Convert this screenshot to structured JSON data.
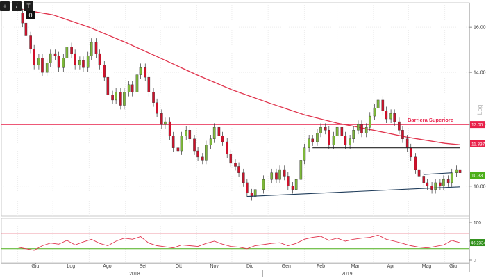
{
  "toolbar": {
    "buttons": [
      {
        "icon": "pan-icon",
        "glyph": "+"
      },
      {
        "icon": "draw-icon",
        "glyph": "/"
      },
      {
        "icon": "text-icon",
        "glyph": "T"
      }
    ],
    "badge": "0"
  },
  "chart_data": [
    {
      "type": "candlestick",
      "title": "",
      "xlabel": "",
      "ylabel": "",
      "scale": "log",
      "scale_label": "Log",
      "ylim": [
        9.15,
        17.2
      ],
      "y_ticks": [
        10.0,
        12.0,
        14.0,
        16.0
      ],
      "y_tick_labels": [
        "10.00",
        "12.00",
        "14.00",
        "16.00"
      ],
      "x_months": [
        "Giu",
        "Lug",
        "Ago",
        "Set",
        "Ott",
        "Nov",
        "Dic",
        "Gen",
        "Feb",
        "Mar",
        "Apr",
        "Mag",
        "Giu"
      ],
      "x_years": [
        "2018",
        "2019"
      ],
      "up_color": "#7db83a",
      "down_color": "#d0112b",
      "grid": true,
      "series": [
        {
          "kind": "close_path",
          "points": [
            [
              "2018-06-01",
              16.7
            ],
            [
              "2018-06-05",
              16.2
            ],
            [
              "2018-06-08",
              15.6
            ],
            [
              "2018-06-12",
              15.0
            ],
            [
              "2018-06-15",
              14.3
            ],
            [
              "2018-06-19",
              14.6
            ],
            [
              "2018-06-22",
              14.0
            ],
            [
              "2018-06-26",
              14.4
            ],
            [
              "2018-06-29",
              14.8
            ],
            [
              "2018-07-03",
              14.7
            ],
            [
              "2018-07-06",
              14.2
            ],
            [
              "2018-07-10",
              14.6
            ],
            [
              "2018-07-13",
              15.1
            ],
            [
              "2018-07-17",
              14.8
            ],
            [
              "2018-07-20",
              14.3
            ],
            [
              "2018-07-24",
              14.5
            ],
            [
              "2018-07-27",
              14.2
            ],
            [
              "2018-07-31",
              14.7
            ],
            [
              "2018-08-03",
              15.3
            ],
            [
              "2018-08-07",
              14.8
            ],
            [
              "2018-08-10",
              14.3
            ],
            [
              "2018-08-14",
              13.8
            ],
            [
              "2018-08-17",
              13.1
            ],
            [
              "2018-08-21",
              12.9
            ],
            [
              "2018-08-24",
              13.2
            ],
            [
              "2018-08-28",
              12.7
            ],
            [
              "2018-08-31",
              13.2
            ],
            [
              "2018-09-04",
              13.5
            ],
            [
              "2018-09-07",
              13.2
            ],
            [
              "2018-09-11",
              13.9
            ],
            [
              "2018-09-14",
              14.2
            ],
            [
              "2018-09-18",
              13.8
            ],
            [
              "2018-09-21",
              13.2
            ],
            [
              "2018-09-25",
              12.8
            ],
            [
              "2018-09-28",
              12.4
            ],
            [
              "2018-10-02",
              12.0
            ],
            [
              "2018-10-05",
              12.1
            ],
            [
              "2018-10-09",
              11.6
            ],
            [
              "2018-10-12",
              11.2
            ],
            [
              "2018-10-16",
              11.1
            ],
            [
              "2018-10-19",
              11.6
            ],
            [
              "2018-10-23",
              11.8
            ],
            [
              "2018-10-26",
              11.5
            ],
            [
              "2018-10-30",
              11.1
            ],
            [
              "2018-11-02",
              10.9
            ],
            [
              "2018-11-06",
              10.8
            ],
            [
              "2018-11-09",
              11.3
            ],
            [
              "2018-11-13",
              11.5
            ],
            [
              "2018-11-16",
              11.9
            ],
            [
              "2018-11-20",
              11.6
            ],
            [
              "2018-11-23",
              11.4
            ],
            [
              "2018-11-27",
              11.0
            ],
            [
              "2018-11-30",
              10.7
            ],
            [
              "2018-12-04",
              10.6
            ],
            [
              "2018-12-07",
              10.4
            ],
            [
              "2018-12-11",
              10.1
            ],
            [
              "2018-12-14",
              9.8
            ],
            [
              "2018-12-18",
              9.7
            ],
            [
              "2018-12-21",
              9.9
            ],
            [
              "2018-12-28",
              10.2
            ],
            [
              "2019-01-04",
              10.4
            ],
            [
              "2019-01-08",
              10.2
            ],
            [
              "2019-01-11",
              10.5
            ],
            [
              "2019-01-15",
              10.3
            ],
            [
              "2019-01-18",
              10.0
            ],
            [
              "2019-01-22",
              9.9
            ],
            [
              "2019-01-25",
              10.2
            ],
            [
              "2019-01-29",
              10.8
            ],
            [
              "2019-02-01",
              11.2
            ],
            [
              "2019-02-05",
              11.5
            ],
            [
              "2019-02-08",
              11.4
            ],
            [
              "2019-02-12",
              11.7
            ],
            [
              "2019-02-15",
              11.9
            ],
            [
              "2019-02-19",
              11.8
            ],
            [
              "2019-02-22",
              11.3
            ],
            [
              "2019-02-26",
              11.6
            ],
            [
              "2019-03-01",
              11.9
            ],
            [
              "2019-03-05",
              11.6
            ],
            [
              "2019-03-08",
              11.3
            ],
            [
              "2019-03-12",
              11.5
            ],
            [
              "2019-03-15",
              11.8
            ],
            [
              "2019-03-19",
              12.0
            ],
            [
              "2019-03-22",
              11.7
            ],
            [
              "2019-03-26",
              11.9
            ],
            [
              "2019-03-29",
              12.3
            ],
            [
              "2019-04-02",
              12.6
            ],
            [
              "2019-04-05",
              12.9
            ],
            [
              "2019-04-09",
              12.5
            ],
            [
              "2019-04-12",
              12.2
            ],
            [
              "2019-04-16",
              12.4
            ],
            [
              "2019-04-19",
              12.1
            ],
            [
              "2019-04-23",
              11.8
            ],
            [
              "2019-04-26",
              11.5
            ],
            [
              "2019-04-30",
              11.2
            ],
            [
              "2019-05-03",
              10.9
            ],
            [
              "2019-05-07",
              10.5
            ],
            [
              "2019-05-10",
              10.3
            ],
            [
              "2019-05-14",
              10.1
            ],
            [
              "2019-05-17",
              10.0
            ],
            [
              "2019-05-21",
              9.9
            ],
            [
              "2019-05-24",
              10.1
            ],
            [
              "2019-05-28",
              10.0
            ],
            [
              "2019-05-31",
              10.2
            ],
            [
              "2019-06-04",
              10.1
            ],
            [
              "2019-06-07",
              10.4
            ],
            [
              "2019-06-11",
              10.5
            ],
            [
              "2019-06-14",
              10.4
            ]
          ]
        },
        {
          "kind": "moving_average",
          "color": "#e0344d",
          "points": [
            [
              "2018-06-01",
              16.9
            ],
            [
              "2018-07-01",
              16.6
            ],
            [
              "2018-08-01",
              16.0
            ],
            [
              "2018-09-01",
              15.3
            ],
            [
              "2018-10-01",
              14.6
            ],
            [
              "2018-11-01",
              13.9
            ],
            [
              "2018-12-01",
              13.3
            ],
            [
              "2019-01-01",
              12.8
            ],
            [
              "2019-02-01",
              12.35
            ],
            [
              "2019-03-01",
              12.05
            ],
            [
              "2019-04-01",
              11.8
            ],
            [
              "2019-05-01",
              11.55
            ],
            [
              "2019-06-01",
              11.35
            ],
            [
              "2019-06-14",
              11.3
            ]
          ]
        }
      ],
      "annotations": [
        {
          "type": "hline",
          "label": "Barriera Superiore",
          "value": 12.0,
          "color": "#e8214a"
        },
        {
          "type": "segment",
          "color": "#222222",
          "from": [
            "2019-02-08",
            11.2
          ],
          "to": [
            "2019-06-14",
            11.2
          ]
        },
        {
          "type": "segment",
          "color": "#1f3c5a",
          "from": [
            "2018-12-14",
            9.7
          ],
          "to": [
            "2019-06-14",
            9.98
          ]
        },
        {
          "type": "segment",
          "color": "#1f3c5a",
          "from": [
            "2019-05-14",
            10.35
          ],
          "to": [
            "2019-06-07",
            10.4
          ]
        }
      ],
      "price_labels": [
        {
          "text": "12.00",
          "value": 12.0,
          "color": "#e8214a"
        },
        {
          "text": "11.337",
          "value": 11.337,
          "color": "#e8214a"
        },
        {
          "text": "10.33",
          "value": 10.33,
          "color": "#4caf1a"
        }
      ]
    },
    {
      "type": "line",
      "title": "",
      "ylim": [
        0,
        100
      ],
      "y_ticks": [
        0,
        50,
        100
      ],
      "y_tick_labels": [
        "0",
        "50",
        "100"
      ],
      "levels": [
        {
          "value": 70,
          "color": "#e0344d"
        },
        {
          "value": 30,
          "color": "#4caf1a"
        }
      ],
      "series": [
        {
          "color": "#e0344d",
          "points": [
            [
              "2018-06-01",
              34
            ],
            [
              "2018-06-08",
              30
            ],
            [
              "2018-06-15",
              26
            ],
            [
              "2018-06-22",
              38
            ],
            [
              "2018-06-29",
              45
            ],
            [
              "2018-07-06",
              42
            ],
            [
              "2018-07-13",
              52
            ],
            [
              "2018-07-20",
              40
            ],
            [
              "2018-07-27",
              48
            ],
            [
              "2018-08-03",
              55
            ],
            [
              "2018-08-10",
              44
            ],
            [
              "2018-08-17",
              38
            ],
            [
              "2018-08-24",
              50
            ],
            [
              "2018-08-31",
              58
            ],
            [
              "2018-09-07",
              55
            ],
            [
              "2018-09-14",
              62
            ],
            [
              "2018-09-21",
              45
            ],
            [
              "2018-09-28",
              38
            ],
            [
              "2018-10-05",
              35
            ],
            [
              "2018-10-12",
              32
            ],
            [
              "2018-10-19",
              40
            ],
            [
              "2018-10-26",
              38
            ],
            [
              "2018-11-02",
              36
            ],
            [
              "2018-11-09",
              44
            ],
            [
              "2018-11-16",
              50
            ],
            [
              "2018-11-23",
              42
            ],
            [
              "2018-11-30",
              36
            ],
            [
              "2018-12-07",
              34
            ],
            [
              "2018-12-14",
              30
            ],
            [
              "2018-12-21",
              38
            ],
            [
              "2019-01-04",
              44
            ],
            [
              "2019-01-11",
              46
            ],
            [
              "2019-01-18",
              38
            ],
            [
              "2019-01-25",
              44
            ],
            [
              "2019-02-01",
              55
            ],
            [
              "2019-02-08",
              60
            ],
            [
              "2019-02-15",
              63
            ],
            [
              "2019-02-22",
              52
            ],
            [
              "2019-03-01",
              58
            ],
            [
              "2019-03-08",
              50
            ],
            [
              "2019-03-15",
              55
            ],
            [
              "2019-03-22",
              58
            ],
            [
              "2019-03-29",
              60
            ],
            [
              "2019-04-05",
              66
            ],
            [
              "2019-04-12",
              55
            ],
            [
              "2019-04-19",
              50
            ],
            [
              "2019-04-26",
              44
            ],
            [
              "2019-05-03",
              38
            ],
            [
              "2019-05-10",
              34
            ],
            [
              "2019-05-17",
              32
            ],
            [
              "2019-05-24",
              36
            ],
            [
              "2019-05-31",
              40
            ],
            [
              "2019-06-07",
              52
            ],
            [
              "2019-06-14",
              46
            ]
          ]
        }
      ],
      "price_labels": [
        {
          "text": "46.2334",
          "value": 46.2334,
          "color": "#2f8f1a"
        }
      ]
    }
  ]
}
